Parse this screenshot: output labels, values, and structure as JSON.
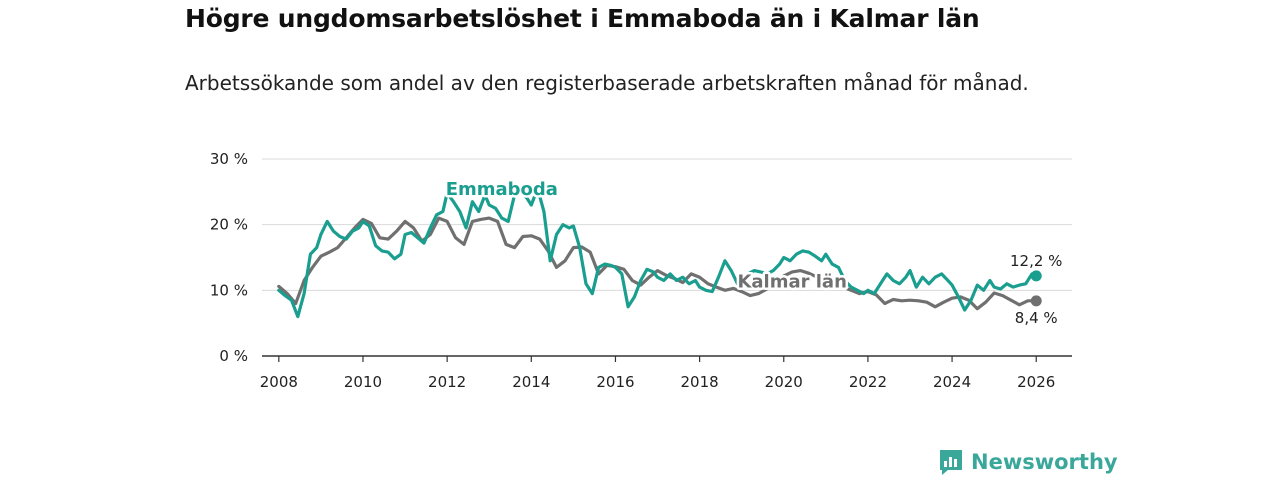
{
  "title": "Högre ungdomsarbetslöshet i Emmaboda än i Kalmar län",
  "subtitle": "Arbetssökande som andel av den registerbaserade arbetskraften månad för månad.",
  "brand": {
    "name": "Newsworthy",
    "icon": "newsworthy-logo-icon"
  },
  "colors": {
    "emmaboda": "#1a9e8f",
    "kalmar": "#707070",
    "grid": "#d9d9d9",
    "axis": "#333333"
  },
  "chart_data": {
    "type": "line",
    "title": "Högre ungdomsarbetslöshet i Emmaboda än i Kalmar län",
    "xlabel": "",
    "ylabel": "",
    "xlim": [
      2007.6,
      2026.85
    ],
    "ylim": [
      0,
      30
    ],
    "xticks": [
      2008,
      2010,
      2012,
      2014,
      2016,
      2018,
      2020,
      2022,
      2024,
      2026
    ],
    "xtick_labels": [
      "2008",
      "2010",
      "2012",
      "2014",
      "2016",
      "2018",
      "2020",
      "2022",
      "2024",
      "2026"
    ],
    "yticks": [
      0,
      10,
      20,
      30
    ],
    "ytick_labels": [
      "0 %",
      "10 %",
      "20 %",
      "30 %"
    ],
    "grid": true,
    "series": [
      {
        "name": "Kalmar län",
        "label": "Kalmar län",
        "end_label": "8,4 %",
        "x": [
          2008.0,
          2008.2,
          2008.4,
          2008.6,
          2008.8,
          2009.0,
          2009.2,
          2009.4,
          2009.6,
          2009.8,
          2010.0,
          2010.2,
          2010.4,
          2010.6,
          2010.8,
          2011.0,
          2011.2,
          2011.4,
          2011.6,
          2011.8,
          2012.0,
          2012.2,
          2012.4,
          2012.6,
          2012.8,
          2013.0,
          2013.2,
          2013.4,
          2013.6,
          2013.8,
          2014.0,
          2014.2,
          2014.4,
          2014.6,
          2014.8,
          2015.0,
          2015.2,
          2015.4,
          2015.6,
          2015.8,
          2016.0,
          2016.2,
          2016.4,
          2016.6,
          2016.8,
          2017.0,
          2017.2,
          2017.4,
          2017.6,
          2017.8,
          2018.0,
          2018.2,
          2018.4,
          2018.6,
          2018.8,
          2019.0,
          2019.2,
          2019.4,
          2019.6,
          2019.8,
          2020.0,
          2020.2,
          2020.4,
          2020.6,
          2020.8,
          2021.0,
          2021.2,
          2021.4,
          2021.6,
          2021.8,
          2022.0,
          2022.2,
          2022.4,
          2022.6,
          2022.8,
          2023.0,
          2023.2,
          2023.4,
          2023.6,
          2023.8,
          2024.0,
          2024.2,
          2024.4,
          2024.6,
          2024.8,
          2025.0,
          2025.2,
          2025.4,
          2025.6,
          2025.8,
          2026.0
        ],
        "values": [
          10.6,
          9.5,
          8.0,
          11.5,
          13.5,
          15.2,
          15.8,
          16.5,
          18.0,
          19.5,
          20.8,
          20.2,
          18.0,
          17.8,
          19.0,
          20.5,
          19.5,
          17.5,
          18.5,
          21.0,
          20.5,
          18.0,
          17.0,
          20.5,
          20.8,
          21.0,
          20.5,
          17.0,
          16.5,
          18.2,
          18.3,
          17.8,
          16.0,
          13.5,
          14.5,
          16.5,
          16.6,
          15.8,
          12.5,
          13.8,
          13.6,
          13.2,
          11.5,
          10.8,
          12.0,
          13.0,
          12.3,
          11.8,
          11.2,
          12.5,
          12.0,
          11.0,
          10.5,
          10.0,
          10.3,
          9.8,
          9.2,
          9.5,
          10.2,
          11.0,
          12.2,
          12.8,
          13.0,
          12.6,
          12.0,
          11.5,
          10.8,
          10.5,
          10.0,
          9.5,
          9.8,
          9.3,
          8.0,
          8.6,
          8.4,
          8.5,
          8.4,
          8.2,
          7.5,
          8.2,
          8.8,
          9.0,
          8.5,
          7.2,
          8.2,
          9.6,
          9.2,
          8.5,
          7.8,
          8.4,
          8.4
        ]
      },
      {
        "name": "Emmaboda",
        "label": "Emmaboda",
        "end_label": "12,2 %",
        "x": [
          2008.0,
          2008.15,
          2008.3,
          2008.45,
          2008.6,
          2008.75,
          2008.9,
          2009.0,
          2009.15,
          2009.3,
          2009.45,
          2009.6,
          2009.75,
          2009.9,
          2010.0,
          2010.15,
          2010.3,
          2010.45,
          2010.6,
          2010.75,
          2010.9,
          2011.0,
          2011.15,
          2011.3,
          2011.45,
          2011.6,
          2011.75,
          2011.9,
          2012.0,
          2012.15,
          2012.3,
          2012.45,
          2012.6,
          2012.75,
          2012.9,
          2013.0,
          2013.15,
          2013.3,
          2013.45,
          2013.6,
          2013.75,
          2013.9,
          2014.0,
          2014.15,
          2014.3,
          2014.45,
          2014.6,
          2014.75,
          2014.9,
          2015.0,
          2015.15,
          2015.3,
          2015.45,
          2015.6,
          2015.75,
          2015.9,
          2016.0,
          2016.15,
          2016.3,
          2016.45,
          2016.6,
          2016.75,
          2016.9,
          2017.0,
          2017.15,
          2017.3,
          2017.45,
          2017.6,
          2017.75,
          2017.9,
          2018.0,
          2018.15,
          2018.3,
          2018.45,
          2018.6,
          2018.75,
          2018.9,
          2019.0,
          2019.15,
          2019.3,
          2019.45,
          2019.6,
          2019.75,
          2019.9,
          2020.0,
          2020.15,
          2020.3,
          2020.45,
          2020.6,
          2020.75,
          2020.9,
          2021.0,
          2021.15,
          2021.3,
          2021.45,
          2021.6,
          2021.75,
          2021.9,
          2022.0,
          2022.15,
          2022.3,
          2022.45,
          2022.6,
          2022.75,
          2022.9,
          2023.0,
          2023.15,
          2023.3,
          2023.45,
          2023.6,
          2023.75,
          2023.9,
          2024.0,
          2024.15,
          2024.3,
          2024.45,
          2024.6,
          2024.75,
          2024.9,
          2025.0,
          2025.15,
          2025.3,
          2025.45,
          2025.6,
          2025.75,
          2025.9,
          2026.0
        ],
        "values": [
          10.0,
          9.2,
          8.5,
          6.0,
          9.5,
          15.5,
          16.5,
          18.5,
          20.5,
          19.0,
          18.2,
          17.8,
          19.0,
          19.5,
          20.5,
          19.8,
          16.8,
          16.0,
          15.8,
          14.8,
          15.5,
          18.5,
          18.8,
          18.0,
          17.2,
          19.5,
          21.5,
          22.0,
          24.8,
          23.5,
          22.0,
          19.5,
          23.5,
          22.0,
          24.5,
          23.0,
          22.5,
          21.0,
          20.5,
          24.5,
          25.0,
          24.0,
          23.0,
          25.5,
          22.0,
          14.5,
          18.5,
          20.0,
          19.5,
          19.8,
          16.5,
          11.0,
          9.5,
          13.5,
          14.0,
          13.8,
          13.5,
          12.5,
          7.5,
          9.0,
          11.5,
          13.2,
          12.8,
          12.0,
          11.5,
          12.5,
          11.5,
          12.0,
          11.0,
          11.5,
          10.5,
          10.0,
          9.8,
          12.0,
          14.5,
          13.0,
          11.0,
          12.0,
          12.5,
          13.0,
          12.8,
          12.5,
          13.0,
          14.0,
          15.0,
          14.5,
          15.5,
          16.0,
          15.8,
          15.2,
          14.5,
          15.5,
          14.0,
          13.5,
          11.5,
          10.5,
          10.0,
          9.5,
          10.0,
          9.5,
          11.0,
          12.5,
          11.5,
          11.0,
          12.0,
          13.0,
          10.5,
          12.0,
          11.0,
          12.0,
          12.5,
          11.5,
          10.8,
          9.0,
          7.0,
          8.5,
          10.8,
          10.0,
          11.5,
          10.5,
          10.2,
          11.0,
          10.5,
          10.8,
          11.0,
          12.5,
          12.2
        ]
      }
    ]
  }
}
